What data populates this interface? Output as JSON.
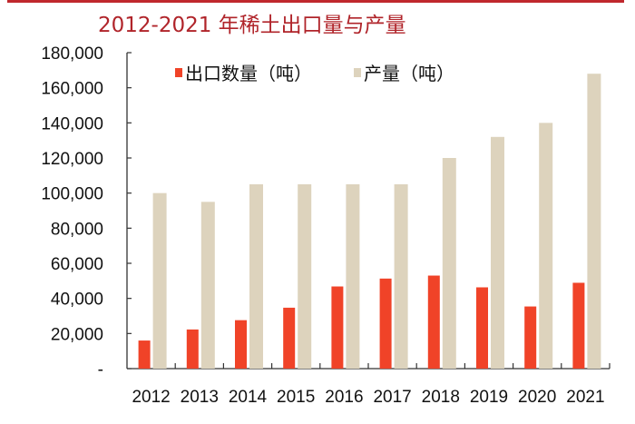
{
  "chart_data": {
    "type": "bar",
    "title": "2012-2021 年稀土出口量与产量",
    "categories": [
      "2012",
      "2013",
      "2014",
      "2015",
      "2016",
      "2017",
      "2018",
      "2019",
      "2020",
      "2021"
    ],
    "series": [
      {
        "name": "出口数量（吨）",
        "color": "#f04328",
        "values": [
          16000,
          22300,
          27600,
          34700,
          46800,
          51300,
          53000,
          46300,
          35400,
          48900
        ]
      },
      {
        "name": "产量（吨）",
        "color": "#ddd3bd",
        "values": [
          100000,
          95000,
          105000,
          105000,
          105000,
          105000,
          120000,
          132000,
          140000,
          168000
        ]
      }
    ],
    "ylim": [
      0,
      180000
    ],
    "yticks": [
      "-",
      "20,000",
      "40,000",
      "60,000",
      "80,000",
      "100,000",
      "120,000",
      "140,000",
      "160,000",
      "180,000"
    ],
    "xlabel": "",
    "ylabel": "",
    "legend": "top-left",
    "grid": false,
    "accent_color": "#c0282d"
  }
}
